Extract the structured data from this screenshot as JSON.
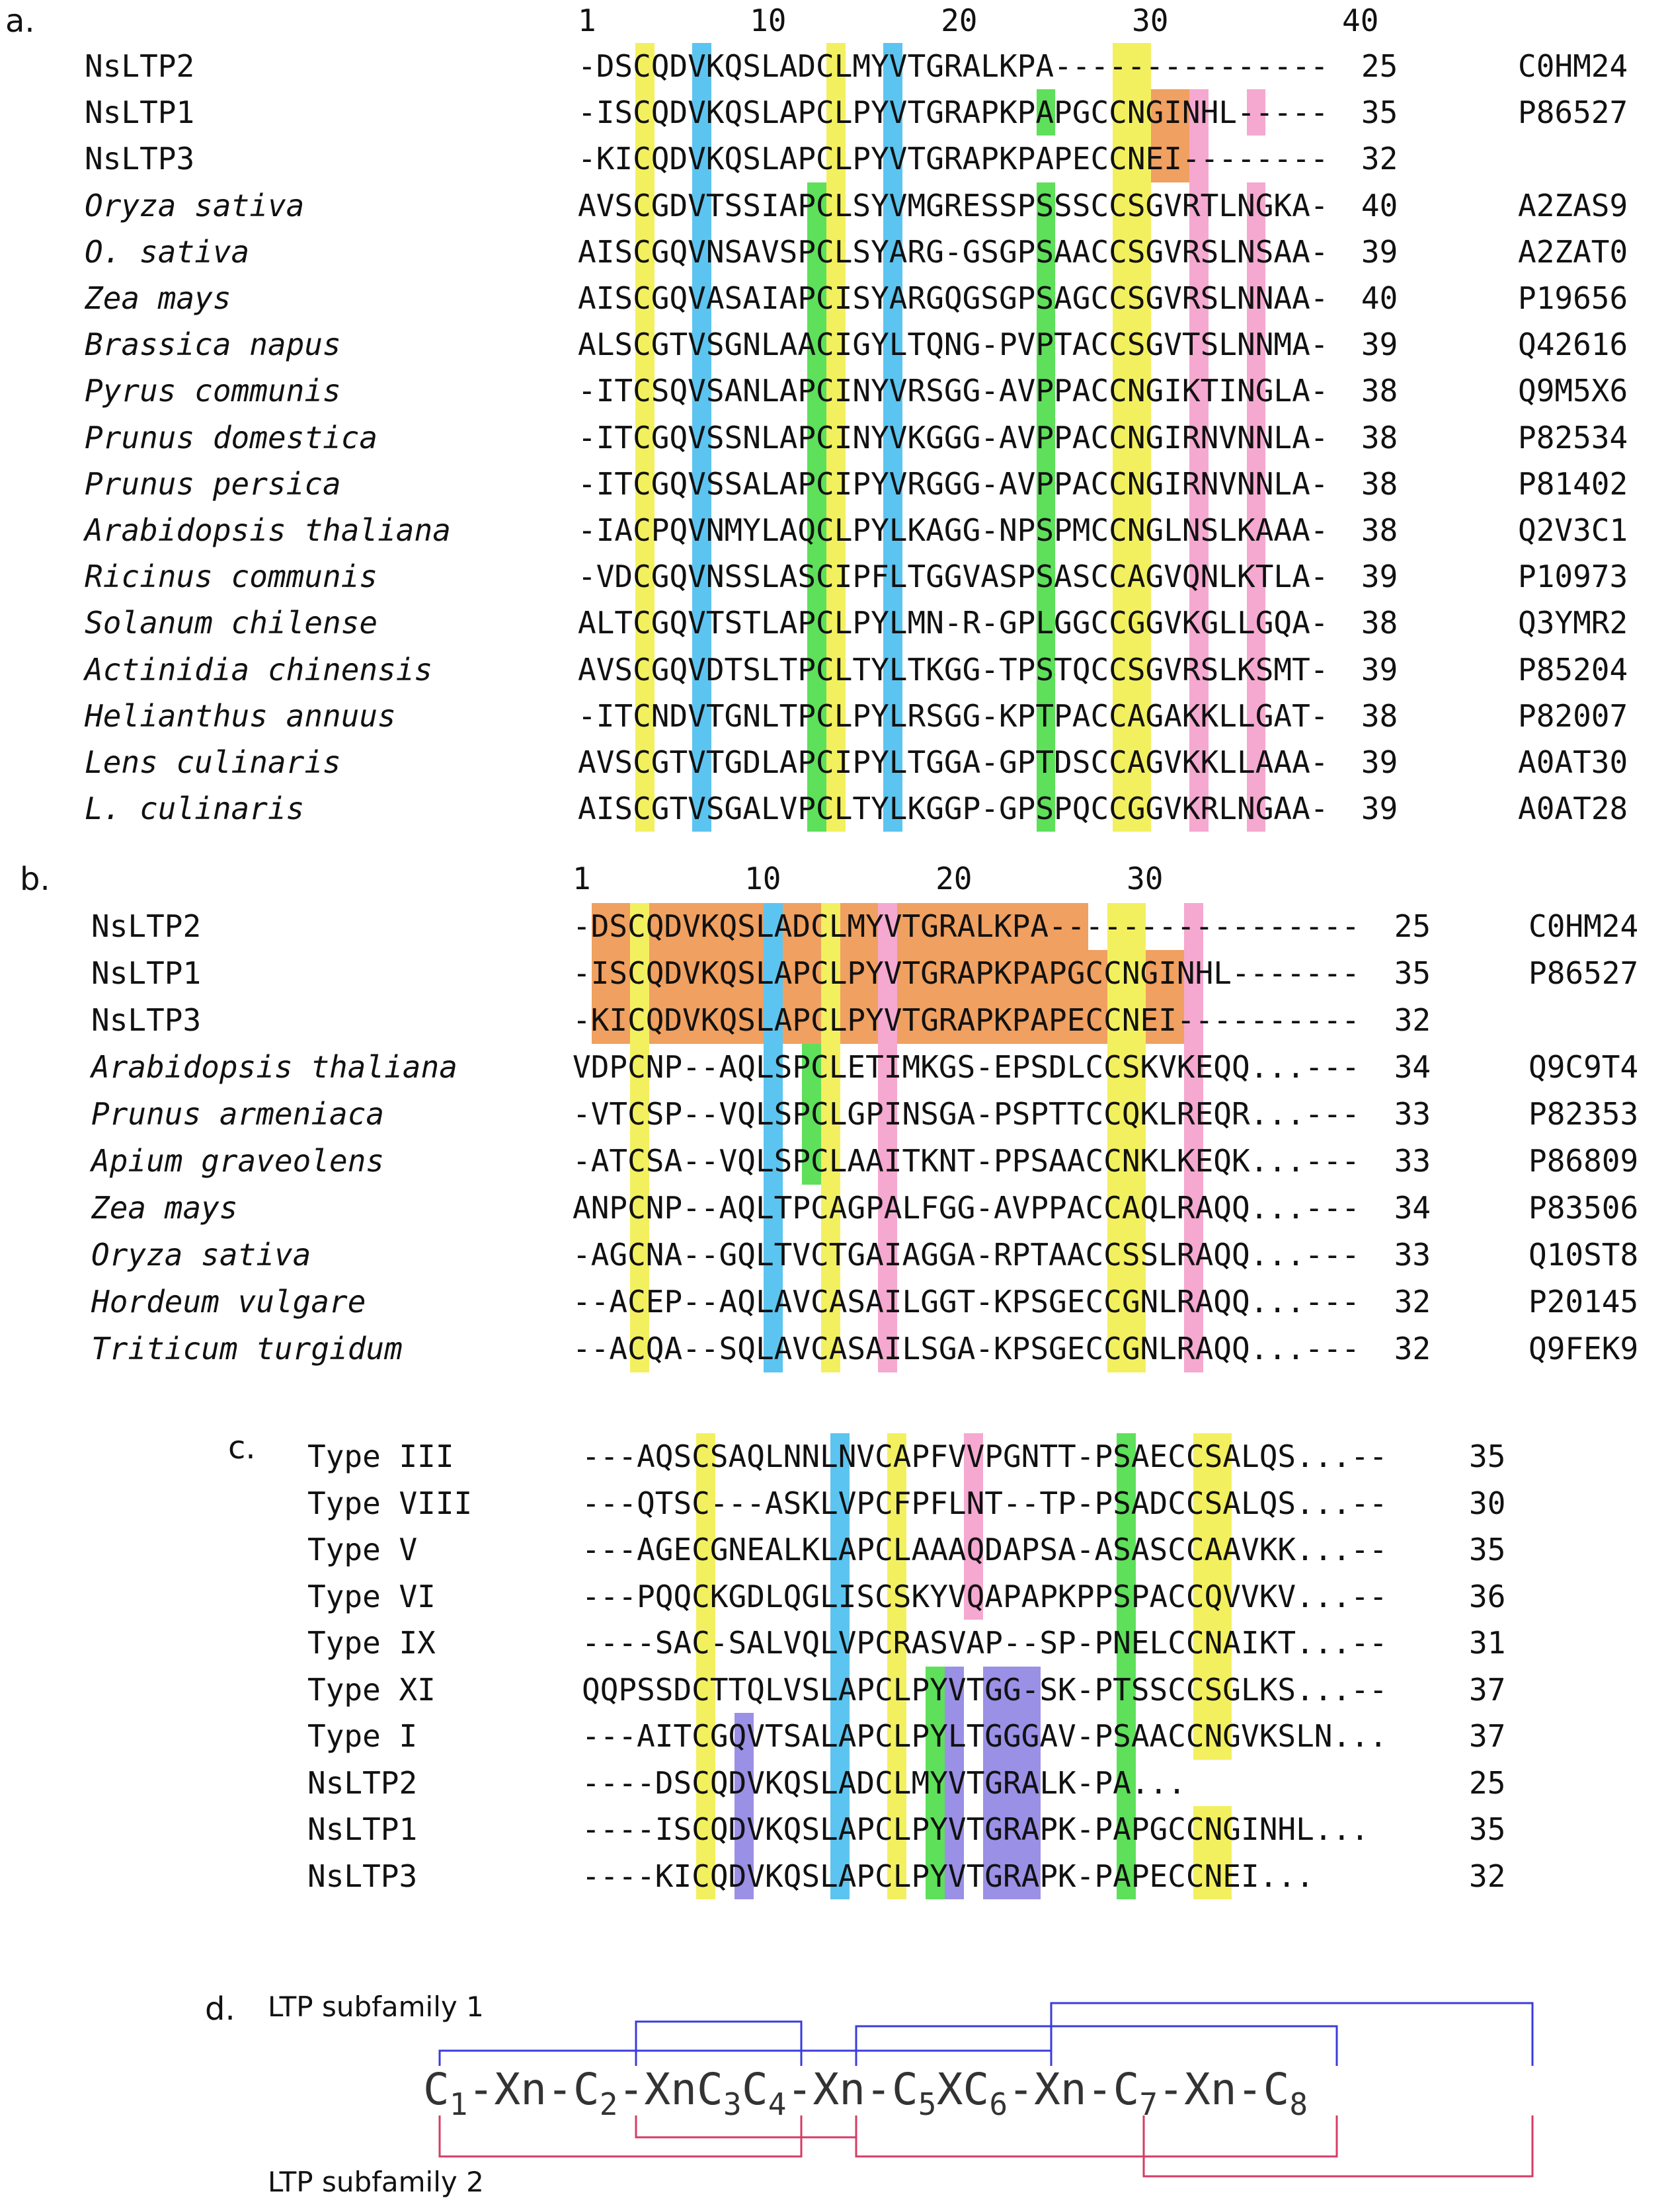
{
  "colors": {
    "orange": "#f0a060",
    "yellow": "#f3f060",
    "blue": "#5cc4f0",
    "green": "#5ee05a",
    "pink": "#f5a8d0",
    "purple": "#9a90e6",
    "bond_blue": "#3b3bdc",
    "bond_red": "#d63b66"
  },
  "panels": [
    {
      "label": "a.",
      "ruler": [
        "1",
        "10",
        "20",
        "30",
        "40"
      ],
      "rows": [
        {
          "name": "NsLTP2",
          "italic": false,
          "seq": "-DSCQDVKQSLADCLMYVTGRALKPA---------------",
          "len": "25",
          "acc": "C0HM24"
        },
        {
          "name": "NsLTP1",
          "italic": false,
          "seq": "-ISCQDVKQSLAPCLPYVTGRAPKPAPGCCNGINHL-----",
          "len": "35",
          "acc": "P86527"
        },
        {
          "name": "NsLTP3",
          "italic": false,
          "seq": "-KICQDVKQSLAPCLPYVTGRAPKPAPECCNEI--------",
          "len": "32",
          "acc": ""
        },
        {
          "name": "Oryza sativa",
          "italic": true,
          "seq": "AVSCGDVTSSIAPCLSYVMGRESSPSSSCCSGVRTLNGKA-",
          "len": "40",
          "acc": "A2ZAS9"
        },
        {
          "name": "O. sativa",
          "italic": true,
          "seq": "AISCGQVNSAVSPCLSYARG-GSGPSAACCSGVRSLNSAA-",
          "len": "39",
          "acc": "A2ZAT0"
        },
        {
          "name": "Zea mays",
          "italic": true,
          "seq": "AISCGQVASAIAPCISYARGQGSGPSAGCCSGVRSLNNAA-",
          "len": "40",
          "acc": "P19656"
        },
        {
          "name": "Brassica napus",
          "italic": true,
          "seq": "ALSCGTVSGNLAACIGYLTQNG-PVPTACCSGVTSLNNMA-",
          "len": "39",
          "acc": "Q42616"
        },
        {
          "name": "Pyrus communis",
          "italic": true,
          "seq": "-ITCSQVSANLAPCINYVRSGG-AVPPACCNGIKTINGLA-",
          "len": "38",
          "acc": "Q9M5X6"
        },
        {
          "name": "Prunus domestica",
          "italic": true,
          "seq": "-ITCGQVSSNLAPCINYVKGGG-AVPPACCNGIRNVNNLA-",
          "len": "38",
          "acc": "P82534"
        },
        {
          "name": "Prunus persica",
          "italic": true,
          "seq": "-ITCGQVSSALAPCIPYVRGGG-AVPPACCNGIRNVNNLA-",
          "len": "38",
          "acc": "P81402"
        },
        {
          "name": "Arabidopsis thaliana",
          "italic": true,
          "seq": "-IACPQVNMYLAQCLPYLKAGG-NPSPMCCNGLNSLKAAA-",
          "len": "38",
          "acc": "Q2V3C1"
        },
        {
          "name": "Ricinus communis",
          "italic": true,
          "seq": "-VDCGQVNSSLASCIPFLTGGVASPSASCCAGVQNLKTLA-",
          "len": "39",
          "acc": "P10973"
        },
        {
          "name": "Solanum chilense",
          "italic": true,
          "seq": "ALTCGQVTSTLAPCLPYLMN-R-GPLGGCCGGVKGLLGQA-",
          "len": "38",
          "acc": "Q3YMR2"
        },
        {
          "name": "Actinidia chinensis",
          "italic": true,
          "seq": "AVSCGQVDTSLTPCLTYLTKGG-TPSTQCCSGVRSLKSMT-",
          "len": "39",
          "acc": "P85204"
        },
        {
          "name": "Helianthus annuus",
          "italic": true,
          "seq": "-ITCNDVTGNLTPCLPYLRSGG-KPTPACCAGAKKLLGAT-",
          "len": "38",
          "acc": "P82007"
        },
        {
          "name": "Lens culinaris",
          "italic": true,
          "seq": "AVSCGTVTGDLAPCIPYLTGGA-GPTDSCCAGVKKLLAAA-",
          "len": "39",
          "acc": "A0AT30"
        },
        {
          "name": "L. culinaris",
          "italic": true,
          "seq": "AISCGTVSGALVPCLTYLKGGP-GPSPQCCGGVKRLNGAA-",
          "len": "39",
          "acc": "A0AT28"
        }
      ]
    },
    {
      "label": "b.",
      "ruler": [
        "1",
        "10",
        "20",
        "30"
      ],
      "rows": [
        {
          "name": "NsLTP2",
          "italic": false,
          "seq": "-DSCQDVKQSLADCLMYVTGRALKPA-----------------",
          "len": "25",
          "acc": "C0HM24"
        },
        {
          "name": "NsLTP1",
          "italic": false,
          "seq": "-ISCQDVKQSLAPCLPYVTGRAPKPAPGCCNGINHL-------",
          "len": "35",
          "acc": "P86527"
        },
        {
          "name": "NsLTP3",
          "italic": false,
          "seq": "-KICQDVKQSLAPCLPYVTGRAPKPAPECCNEI----------",
          "len": "32",
          "acc": ""
        },
        {
          "name": "Arabidopsis thaliana",
          "italic": true,
          "seq": "VDPCNP--AQLSPCLETIMKGS-EPSDLCCSKVKEQQ...---",
          "len": "34",
          "acc": "Q9C9T4"
        },
        {
          "name": "Prunus armeniaca",
          "italic": true,
          "seq": "-VTCSP--VQLSPCLGPINSGA-PSPTTCCQKLREQR...---",
          "len": "33",
          "acc": "P82353"
        },
        {
          "name": "Apium graveolens",
          "italic": true,
          "seq": "-ATCSA--VQLSPCLAAITKNT-PPSAACCNKLKEQK...---",
          "len": "33",
          "acc": "P86809"
        },
        {
          "name": "Zea mays",
          "italic": true,
          "seq": "ANPCNP--AQLTPCAGPALFGG-AVPPACCAQLRAQQ...---",
          "len": "34",
          "acc": "P83506"
        },
        {
          "name": "Oryza sativa",
          "italic": true,
          "seq": "-AGCNA--GQLTVCTGAIAGGA-RPTAACCSSLRAQQ...---",
          "len": "33",
          "acc": "Q10ST8"
        },
        {
          "name": "Hordeum vulgare",
          "italic": true,
          "seq": "--ACEP--AQLAVCASAILGGT-KPSGECCGNLRAQQ...---",
          "len": "32",
          "acc": "P20145"
        },
        {
          "name": "Triticum turgidum",
          "italic": true,
          "seq": "--ACQA--SQLAVCASAILSGA-KPSGECCGNLRAQQ...---",
          "len": "32",
          "acc": "Q9FEK9"
        }
      ]
    },
    {
      "label": "c.",
      "rows": [
        {
          "name": "Type III",
          "seq": "---AQSCSAQLNNLNVCAPFVVPGNTT-PSAECCSALQS...--",
          "len": "35"
        },
        {
          "name": "Type VIII",
          "seq": "---QTSC---ASKLVPCFPFLNT--TP-PSADCCSALQS...--",
          "len": "30"
        },
        {
          "name": "Type V",
          "seq": "---AGECGNEALKLAPCLAAAQDAPSA-ASASCCAAVKK...--",
          "len": "35"
        },
        {
          "name": "Type VI",
          "seq": "---PQQCKGDLQGLISCSKYVQAPAPKPPSPACCQVVKV...--",
          "len": "36"
        },
        {
          "name": "Type IX",
          "seq": "----SAC-SALVQLVPCRASVAP--SP-PNELCCNAIKT...--",
          "len": "31"
        },
        {
          "name": "Type XI",
          "seq": "QQPSSDCTTQLVSLAPCLPYVTGG-SK-PTSSCCSGLKS...--",
          "len": "37"
        },
        {
          "name": "Type I",
          "seq": "---AITCGQVTSALAPCLPYLTGGGAV-PSAACCNGVKSLN...",
          "len": "37"
        },
        {
          "name": "NsLTP2",
          "seq": "----DSCQDVKQSLADCLMYVTGRALK-PA...",
          "len": "25"
        },
        {
          "name": "NsLTP1",
          "seq": "----ISCQDVKQSLAPCLPYVTGRAPK-PAPGCCNGINHL...",
          "len": "35"
        },
        {
          "name": "NsLTP3",
          "seq": "----KICQDVKQSLAPCLPYVTGRAPK-PAPECCNEI...",
          "len": "32"
        }
      ]
    }
  ],
  "panel_d": {
    "label": "d.",
    "top_caption": "LTP subfamily 1",
    "bottom_caption": "LTP subfamily 2",
    "formula": [
      {
        "t": "C",
        "s": "1"
      },
      {
        "t": "-Xn-",
        "s": ""
      },
      {
        "t": "C",
        "s": "2"
      },
      {
        "t": "-XnC",
        "s": "3"
      },
      {
        "t": "C",
        "s": "4"
      },
      {
        "t": "-Xn-",
        "s": ""
      },
      {
        "t": "C",
        "s": "5"
      },
      {
        "t": "XC",
        "s": "6"
      },
      {
        "t": "-Xn-",
        "s": ""
      },
      {
        "t": "C",
        "s": "7"
      },
      {
        "t": "-Xn-",
        "s": ""
      },
      {
        "t": "C",
        "s": "8"
      }
    ]
  }
}
